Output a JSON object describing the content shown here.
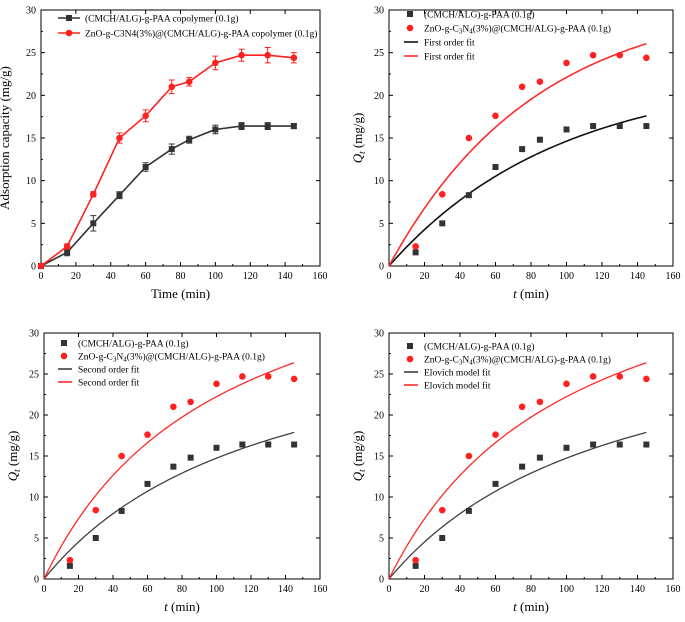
{
  "colors": {
    "black": "#333333",
    "red": "#ff2020",
    "fitblack": "#111111",
    "fitred": "#ff2a2a",
    "fitgray": "#404040"
  },
  "chart_data": [
    {
      "type": "line",
      "xlabel": "Time (min)",
      "ylabel": "Adsorption capacity (mg/g)",
      "xlim": [
        0,
        160
      ],
      "ylim": [
        0,
        30
      ],
      "xticks": [
        "0",
        "20",
        "40",
        "60",
        "80",
        "100",
        "120",
        "140",
        "160"
      ],
      "yticks": [
        "0",
        "5",
        "10",
        "15",
        "20",
        "25",
        "30"
      ],
      "x": [
        0,
        15,
        30,
        45,
        60,
        75,
        85,
        100,
        115,
        130,
        145
      ],
      "series": [
        {
          "name": "(CMCH/ALG)-g-PAA copolymer (0.1g)",
          "marker": "square",
          "values": [
            0,
            1.6,
            5.0,
            8.3,
            11.6,
            13.7,
            14.8,
            16.0,
            16.4,
            16.4,
            16.4
          ],
          "errors": [
            0,
            0.4,
            0.9,
            0.4,
            0.5,
            0.6,
            0.4,
            0.5,
            0.4,
            0.4,
            0.3
          ]
        },
        {
          "name": "ZnO-g-C3N4(3%)@(CMCH/ALG)-g-PAA copolymer (0.1g)",
          "marker": "circle",
          "values": [
            0,
            2.3,
            8.4,
            15.0,
            17.6,
            21.0,
            21.6,
            23.8,
            24.7,
            24.7,
            24.4
          ],
          "errors": [
            0,
            0.3,
            0.3,
            0.6,
            0.7,
            0.8,
            0.5,
            0.8,
            0.7,
            0.9,
            0.6
          ]
        }
      ]
    },
    {
      "type": "scatter",
      "xlabel": "t (min)",
      "xlabel_main": "t",
      "xlabel_unit": "(min)",
      "ylabel": "Qt (mg/g)",
      "ylabel_main": "Q",
      "ylabel_sub": "t",
      "ylabel_unit": "(mg/g)",
      "xlim": [
        0,
        160
      ],
      "ylim": [
        0,
        30
      ],
      "xticks": [
        "0",
        "20",
        "40",
        "60",
        "80",
        "100",
        "120",
        "140",
        "160"
      ],
      "yticks": [
        "0",
        "5",
        "10",
        "15",
        "20",
        "25",
        "30"
      ],
      "x": [
        15,
        30,
        45,
        60,
        75,
        85,
        100,
        115,
        130,
        145
      ],
      "series": [
        {
          "name": "(CMCH/ALG)-g-PAA (0.1g)",
          "marker": "square",
          "values": [
            1.6,
            5.0,
            8.3,
            11.6,
            13.7,
            14.8,
            16.0,
            16.4,
            16.4,
            16.4
          ]
        },
        {
          "name": "ZnO-g-C3N4(3%)@(CMCH/ALG)-g-PAA (0.1g)",
          "name_parts": [
            "ZnO-g-C",
            "3",
            "N",
            "4",
            "(3%)@(CMCH/ALG)-g-PAA (0.1g)"
          ],
          "marker": "circle",
          "values": [
            2.3,
            8.4,
            15.0,
            17.6,
            21.0,
            21.6,
            23.8,
            24.7,
            24.7,
            24.4
          ]
        }
      ],
      "fits": [
        {
          "name": "First order fit",
          "model": "first_order",
          "qe": 22.5,
          "k": 0.0105
        },
        {
          "name": "First order fit",
          "model": "first_order",
          "qe": 31.5,
          "k": 0.0121
        }
      ]
    },
    {
      "type": "scatter",
      "xlabel": "t (min)",
      "xlabel_main": "t",
      "xlabel_unit": "(min)",
      "ylabel": "Qt (mg/g)",
      "ylabel_main": "Q",
      "ylabel_sub": "t",
      "ylabel_unit": "(mg/g)",
      "xlim": [
        0,
        160
      ],
      "ylim": [
        0,
        30
      ],
      "xticks": [
        "0",
        "20",
        "40",
        "60",
        "80",
        "100",
        "120",
        "140",
        "160"
      ],
      "yticks": [
        "0",
        "5",
        "10",
        "15",
        "20",
        "25",
        "30"
      ],
      "x": [
        15,
        30,
        45,
        60,
        75,
        85,
        100,
        115,
        130,
        145
      ],
      "series": [
        {
          "name": "(CMCH/ALG)-g-PAA (0.1g)",
          "marker": "square",
          "values": [
            1.6,
            5.0,
            8.3,
            11.6,
            13.7,
            14.8,
            16.0,
            16.4,
            16.4,
            16.4
          ]
        },
        {
          "name": "ZnO-g-C3N4(3%)@(CMCH/ALG)-g-PAA (0.1g)",
          "name_parts": [
            "ZnO-g-C",
            "3",
            "N",
            "4",
            "(3%)@(CMCH/ALG)-g-PAA (0.1g)"
          ],
          "marker": "circle",
          "values": [
            2.3,
            8.4,
            15.0,
            17.6,
            21.0,
            21.6,
            23.8,
            24.7,
            24.7,
            24.4
          ]
        }
      ],
      "fits": [
        {
          "name": "Second order fit",
          "model": "second_order",
          "qe": 34.0,
          "k": 0.000225
        },
        {
          "name": "Second order fit",
          "model": "second_order",
          "qe": 45.0,
          "k": 0.000217
        }
      ]
    },
    {
      "type": "scatter",
      "xlabel": "t (min)",
      "xlabel_main": "t",
      "xlabel_unit": "(min)",
      "ylabel": "Qt (mg/g)",
      "ylabel_main": "Q",
      "ylabel_sub": "t",
      "ylabel_unit": "(mg/g)",
      "xlim": [
        0,
        160
      ],
      "ylim": [
        0,
        30
      ],
      "xticks": [
        "0",
        "20",
        "40",
        "60",
        "80",
        "100",
        "120",
        "140",
        "160"
      ],
      "yticks": [
        "0",
        "5",
        "10",
        "15",
        "20",
        "25",
        "30"
      ],
      "x": [
        15,
        30,
        45,
        60,
        75,
        85,
        100,
        115,
        130,
        145
      ],
      "series": [
        {
          "name": "(CMCH/ALG)-g-PAA (0.1g)",
          "marker": "square",
          "values": [
            1.6,
            5.0,
            8.3,
            11.6,
            13.7,
            14.8,
            16.0,
            16.4,
            16.4,
            16.4
          ]
        },
        {
          "name": "ZnO-g-C3N4(3%)@(CMCH/ALG)-g-PAA (0.1g)",
          "name_parts": [
            "ZnO-g-C",
            "3",
            "N",
            "4",
            "(3%)@(CMCH/ALG)-g-PAA (0.1g)"
          ],
          "marker": "circle",
          "values": [
            2.3,
            8.4,
            15.0,
            17.6,
            21.0,
            21.6,
            23.8,
            24.7,
            24.7,
            24.4
          ]
        }
      ],
      "fits": [
        {
          "name": "Elovich model fit",
          "model": "second_order",
          "qe": 34.0,
          "k": 0.000225
        },
        {
          "name": "Elovich model fit",
          "model": "second_order",
          "qe": 45.0,
          "k": 0.000217
        }
      ]
    }
  ]
}
